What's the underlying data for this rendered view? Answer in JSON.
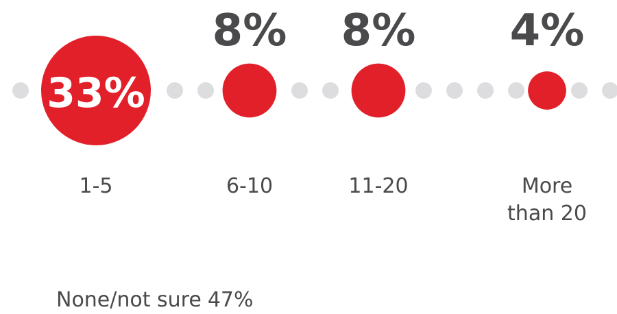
{
  "colors": {
    "accent": "#e2202a",
    "dot": "#dddde0",
    "value_text_dark": "#4a4a4d",
    "value_text_light": "#ffffff",
    "label_text": "#4a4a4d"
  },
  "chart_data": {
    "type": "bubble",
    "title": "",
    "categories": [
      {
        "label": [
          "1-5"
        ],
        "value": 33,
        "display": "33%",
        "label_inside": true
      },
      {
        "label": [
          "6-10"
        ],
        "value": 8,
        "display": "8%",
        "label_inside": false
      },
      {
        "label": [
          "11-20"
        ],
        "value": 8,
        "display": "8%",
        "label_inside": false
      },
      {
        "label": [
          "More",
          "than 20"
        ],
        "value": 4,
        "display": "4%",
        "label_inside": false
      }
    ],
    "other": {
      "label": "None/not sure",
      "value": 47,
      "display": "47%"
    }
  }
}
